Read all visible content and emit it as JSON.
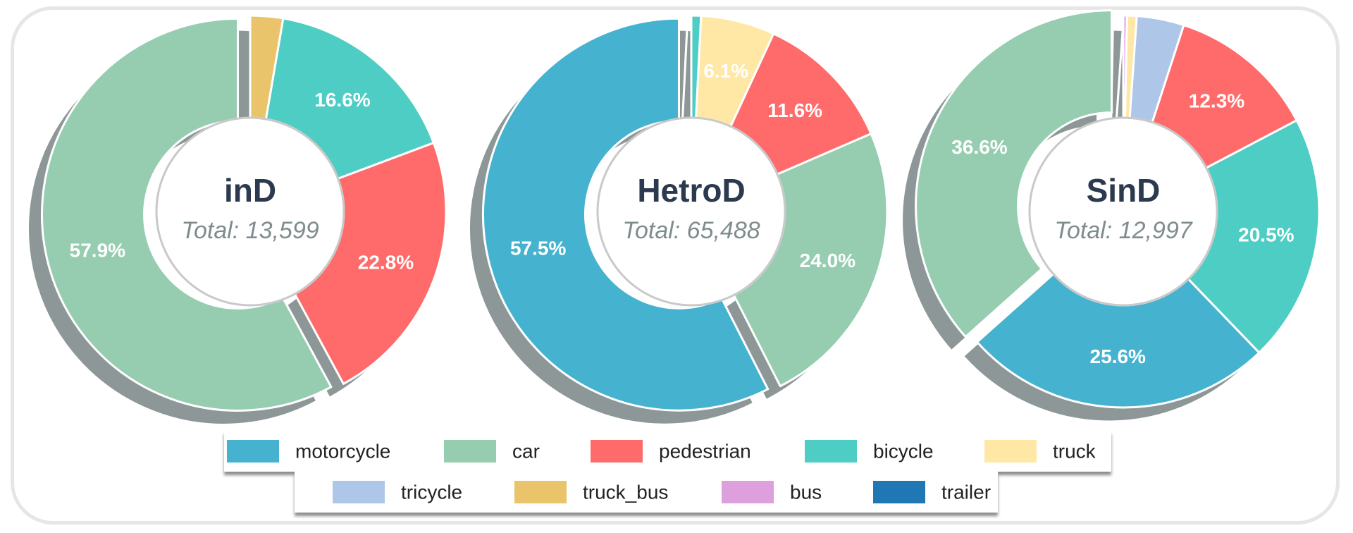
{
  "chart_data": [
    {
      "type": "pie",
      "title": "inD",
      "total_label": "Total: 13,599",
      "slices": [
        {
          "category": "truck_bus",
          "percent": 2.7,
          "label": ""
        },
        {
          "category": "bicycle",
          "percent": 16.6,
          "label": "16.6%"
        },
        {
          "category": "pedestrian",
          "percent": 22.8,
          "label": "22.8%"
        },
        {
          "category": "car",
          "percent": 57.9,
          "label": "57.9%"
        }
      ]
    },
    {
      "type": "pie",
      "title": "HetroD",
      "total_label": "Total: 65,488",
      "slices": [
        {
          "category": "bicycle",
          "percent": 0.8,
          "label": ""
        },
        {
          "category": "truck",
          "percent": 6.1,
          "label": "6.1%"
        },
        {
          "category": "pedestrian",
          "percent": 11.6,
          "label": "11.6%"
        },
        {
          "category": "car",
          "percent": 24.0,
          "label": "24.0%"
        },
        {
          "category": "motorcycle",
          "percent": 57.5,
          "label": "57.5%"
        }
      ]
    },
    {
      "type": "pie",
      "title": "SinD",
      "total_label": "Total: 12,997",
      "slices": [
        {
          "category": "bus",
          "percent": 0.3,
          "label": ""
        },
        {
          "category": "truck",
          "percent": 0.8,
          "label": ""
        },
        {
          "category": "tricycle",
          "percent": 3.9,
          "label": ""
        },
        {
          "category": "pedestrian",
          "percent": 12.3,
          "label": "12.3%"
        },
        {
          "category": "bicycle",
          "percent": 20.5,
          "label": "20.5%"
        },
        {
          "category": "motorcycle",
          "percent": 25.6,
          "label": "25.6%"
        },
        {
          "category": "car",
          "percent": 36.6,
          "label": "36.6%"
        }
      ]
    }
  ],
  "legend": [
    {
      "key": "motorcycle",
      "label": "motorcycle"
    },
    {
      "key": "car",
      "label": "car"
    },
    {
      "key": "pedestrian",
      "label": "pedestrian"
    },
    {
      "key": "bicycle",
      "label": "bicycle"
    },
    {
      "key": "truck",
      "label": "truck"
    },
    {
      "key": "tricycle",
      "label": "tricycle"
    },
    {
      "key": "truck_bus",
      "label": "truck_bus"
    },
    {
      "key": "bus",
      "label": "bus"
    },
    {
      "key": "trailer",
      "label": "trailer"
    }
  ],
  "colors": {
    "motorcycle": "#45b3d0",
    "car": "#96cdb1",
    "pedestrian": "#ff6b6b",
    "bicycle": "#4ecdc4",
    "truck": "#ffe8a6",
    "tricycle": "#aec6e8",
    "truck_bus": "#e9c46a",
    "bus": "#dda0dd",
    "trailer": "#1f77b4",
    "shadow": "#7a8585",
    "title": "#2b3a4e",
    "total": "#7f8c8d"
  }
}
